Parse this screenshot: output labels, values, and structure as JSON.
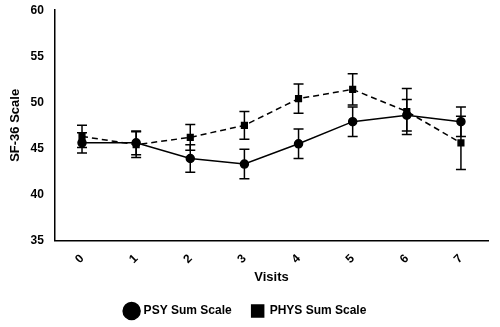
{
  "chart_data": {
    "type": "line",
    "x_label": "Visits",
    "y_label": "SF-36 Scale",
    "categories": [
      "0",
      "1",
      "2",
      "3",
      "4",
      "5",
      "6",
      "7"
    ],
    "series": [
      {
        "name": "PSY Sum Scale",
        "color": "#000000",
        "marker": "circle",
        "line_style": "solid",
        "values": [
          45.6,
          45.6,
          43.9,
          43.3,
          45.5,
          47.9,
          48.6,
          47.9
        ],
        "errors": [
          1.1,
          1.3,
          1.5,
          1.6,
          1.6,
          1.6,
          1.7,
          1.6
        ]
      },
      {
        "name": "PHYS Sum Scale",
        "color": "#000000",
        "marker": "square",
        "line_style": "dashed",
        "values": [
          46.3,
          45.4,
          46.2,
          47.5,
          50.4,
          51.4,
          49.0,
          45.6
        ],
        "errors": [
          1.2,
          1.4,
          1.4,
          1.5,
          1.6,
          1.7,
          2.5,
          2.9
        ]
      }
    ],
    "ylim": [
      35,
      60
    ],
    "yticks": [
      35,
      40,
      45,
      50,
      55,
      60
    ],
    "grid": false,
    "legend": "bottom"
  }
}
